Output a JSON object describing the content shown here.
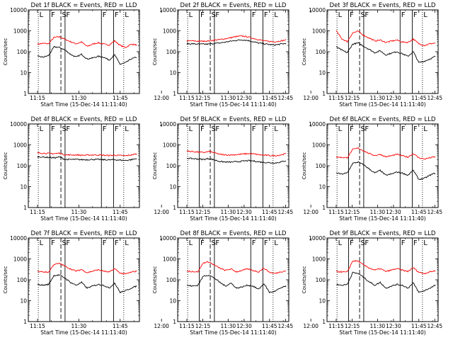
{
  "page": {
    "background": "#ffffff",
    "events_color": "#000000",
    "lld_color": "#ff0000"
  },
  "common": {
    "xlabel": "Start Time (15-Dec-14 11:11:40)",
    "ylabel": "Counts/sec",
    "x_ticks": [
      "11:15",
      "11:30",
      "11:45",
      "12:00",
      "12:15",
      "12:30",
      "12:45"
    ],
    "y_ticks": [
      "1",
      "10",
      "100",
      "1000",
      "10000"
    ],
    "xlim_minutes_from_1100": [
      11.67,
      52
    ],
    "ylim": [
      1,
      10000
    ],
    "y_scale": "log"
  },
  "chart_data": [
    {
      "type": "line",
      "title": "Det 1f BLACK = Events, RED = LLD",
      "panel_tag": "1f",
      "top_markers": [
        "L",
        "F",
        "S",
        "F",
        "F",
        "F",
        "L"
      ],
      "x_minutes_from_1100": [
        15,
        17,
        19,
        21,
        23,
        25,
        27,
        29,
        31,
        33,
        35,
        37,
        39,
        41,
        43,
        45,
        47,
        49,
        51
      ],
      "series": [
        {
          "name": "LLD",
          "values": [
            230,
            250,
            240,
            480,
            520,
            390,
            300,
            240,
            290,
            180,
            230,
            270,
            230,
            210,
            330,
            200,
            160,
            230,
            210
          ]
        },
        {
          "name": "Events",
          "values": [
            60,
            55,
            65,
            170,
            160,
            120,
            75,
            55,
            75,
            45,
            50,
            60,
            55,
            40,
            70,
            25,
            30,
            45,
            55
          ]
        }
      ],
      "markers": [
        {
          "label": "L",
          "x": 15.3,
          "line": "dotted"
        },
        {
          "label": "F",
          "x": 19.5,
          "line": "solid"
        },
        {
          "label": "S",
          "x": 23.5,
          "line": "dashed"
        },
        {
          "label": "F",
          "x": 25.0,
          "line": "solid"
        },
        {
          "label": "F",
          "x": 38.2,
          "line": "solid"
        },
        {
          "label": "F",
          "x": 42.6,
          "line": "solid"
        },
        {
          "label": "L",
          "x": 46.3,
          "line": "dotted"
        }
      ]
    },
    {
      "type": "line",
      "title": "Det 2f BLACK = Events, RED = LLD",
      "panel_tag": "2f",
      "top_markers": [
        "L",
        "F",
        "S",
        "F",
        "F",
        "F",
        "L"
      ],
      "x_minutes_from_1100": [
        15,
        17,
        19,
        21,
        23,
        25,
        27,
        29,
        31,
        33,
        35,
        37,
        39,
        41,
        43,
        45,
        47,
        49,
        51
      ],
      "series": [
        {
          "name": "LLD",
          "values": [
            330,
            330,
            320,
            320,
            330,
            360,
            380,
            420,
            470,
            530,
            560,
            520,
            440,
            380,
            330,
            310,
            300,
            330,
            360
          ]
        },
        {
          "name": "Events",
          "values": [
            240,
            240,
            230,
            230,
            230,
            250,
            260,
            290,
            320,
            350,
            370,
            350,
            300,
            260,
            240,
            220,
            210,
            230,
            250
          ]
        }
      ],
      "markers": [
        {
          "label": "L",
          "x": 15.3,
          "line": "dotted"
        },
        {
          "label": "F",
          "x": 19.5,
          "line": "solid"
        },
        {
          "label": "S",
          "x": 23.5,
          "line": "dashed"
        },
        {
          "label": "F",
          "x": 25.0,
          "line": "solid"
        },
        {
          "label": "F",
          "x": 38.2,
          "line": "solid"
        },
        {
          "label": "F",
          "x": 42.6,
          "line": "solid"
        },
        {
          "label": "L",
          "x": 46.3,
          "line": "dotted"
        }
      ]
    },
    {
      "type": "line",
      "title": "Det 3f BLACK = Events, RED = LLD",
      "panel_tag": "3f",
      "top_markers": [
        "L",
        "F",
        "S",
        "F",
        "F",
        "F",
        "L"
      ],
      "x_minutes_from_1100": [
        15,
        17,
        19,
        21,
        23,
        25,
        27,
        29,
        31,
        33,
        35,
        37,
        39,
        41,
        43,
        45,
        47,
        49,
        51
      ],
      "series": [
        {
          "name": "LLD",
          "values": [
            1000,
            420,
            300,
            800,
            950,
            600,
            450,
            330,
            360,
            280,
            320,
            360,
            290,
            280,
            400,
            240,
            200,
            240,
            260
          ]
        },
        {
          "name": "Events",
          "values": [
            170,
            120,
            90,
            230,
            260,
            180,
            130,
            90,
            110,
            70,
            85,
            100,
            80,
            60,
            100,
            30,
            35,
            45,
            60
          ]
        }
      ],
      "markers": [
        {
          "label": "L",
          "x": 15.3,
          "line": "dotted"
        },
        {
          "label": "F",
          "x": 19.5,
          "line": "solid"
        },
        {
          "label": "S",
          "x": 23.5,
          "line": "dashed"
        },
        {
          "label": "F",
          "x": 25.0,
          "line": "solid"
        },
        {
          "label": "F",
          "x": 38.2,
          "line": "solid"
        },
        {
          "label": "F",
          "x": 42.6,
          "line": "solid"
        },
        {
          "label": "L",
          "x": 46.3,
          "line": "dotted"
        }
      ]
    },
    {
      "type": "line",
      "title": "Det 4f BLACK = Events, RED = LLD",
      "panel_tag": "4f",
      "top_markers": [
        "L",
        "F",
        "S",
        "F",
        "F",
        "F",
        "L"
      ],
      "x_minutes_from_1100": [
        15,
        17,
        19,
        21,
        23,
        25,
        27,
        29,
        31,
        33,
        35,
        37,
        39,
        41,
        43,
        45,
        47,
        49,
        51
      ],
      "series": [
        {
          "name": "LLD",
          "values": [
            420,
            400,
            390,
            380,
            400,
            330,
            330,
            330,
            320,
            320,
            330,
            330,
            320,
            310,
            320,
            310,
            300,
            330,
            370
          ]
        },
        {
          "name": "Events",
          "values": [
            270,
            260,
            250,
            240,
            260,
            200,
            200,
            200,
            195,
            195,
            200,
            200,
            195,
            190,
            195,
            185,
            180,
            195,
            220
          ]
        }
      ],
      "markers": [
        {
          "label": "L",
          "x": 15.3,
          "line": "dotted"
        },
        {
          "label": "F",
          "x": 19.5,
          "line": "solid"
        },
        {
          "label": "S",
          "x": 23.5,
          "line": "dashed"
        },
        {
          "label": "F",
          "x": 25.0,
          "line": "solid"
        },
        {
          "label": "F",
          "x": 38.2,
          "line": "solid"
        },
        {
          "label": "F",
          "x": 42.6,
          "line": "solid"
        },
        {
          "label": "L",
          "x": 46.3,
          "line": "dotted"
        }
      ]
    },
    {
      "type": "line",
      "title": "Det 5f BLACK = Events, RED = LLD",
      "panel_tag": "5f",
      "top_markers": [
        "L",
        "F",
        "S",
        "F",
        "F",
        "F",
        "L"
      ],
      "x_minutes_from_1100": [
        15,
        17,
        19,
        21,
        23,
        25,
        27,
        29,
        31,
        33,
        35,
        37,
        39,
        41,
        43,
        45,
        47,
        49,
        51
      ],
      "series": [
        {
          "name": "LLD",
          "values": [
            500,
            480,
            450,
            430,
            480,
            420,
            350,
            330,
            330,
            340,
            360,
            380,
            370,
            340,
            320,
            310,
            300,
            330,
            380
          ]
        },
        {
          "name": "Events",
          "values": [
            230,
            220,
            210,
            200,
            220,
            190,
            160,
            150,
            150,
            155,
            165,
            175,
            170,
            155,
            145,
            140,
            135,
            150,
            175
          ]
        }
      ],
      "markers": [
        {
          "label": "L",
          "x": 15.3,
          "line": "dotted"
        },
        {
          "label": "F",
          "x": 19.5,
          "line": "solid"
        },
        {
          "label": "S",
          "x": 23.5,
          "line": "dashed"
        },
        {
          "label": "F",
          "x": 25.0,
          "line": "solid"
        },
        {
          "label": "F",
          "x": 38.2,
          "line": "solid"
        },
        {
          "label": "F",
          "x": 42.6,
          "line": "solid"
        },
        {
          "label": "L",
          "x": 46.3,
          "line": "dotted"
        }
      ]
    },
    {
      "type": "line",
      "title": "Det 6f BLACK = Events, RED = LLD",
      "panel_tag": "6f",
      "top_markers": [
        "L",
        "F",
        "S",
        "F",
        "F",
        "F",
        "L"
      ],
      "x_minutes_from_1100": [
        15,
        17,
        19,
        21,
        23,
        25,
        27,
        29,
        31,
        33,
        35,
        37,
        39,
        41,
        43,
        45,
        47,
        49,
        51
      ],
      "series": [
        {
          "name": "LLD",
          "values": [
            260,
            250,
            240,
            600,
            700,
            520,
            380,
            310,
            350,
            270,
            300,
            350,
            300,
            260,
            380,
            240,
            210,
            240,
            270
          ]
        },
        {
          "name": "Events",
          "values": [
            45,
            40,
            45,
            130,
            150,
            110,
            70,
            45,
            60,
            35,
            40,
            50,
            45,
            35,
            60,
            22,
            25,
            35,
            45
          ]
        }
      ],
      "markers": [
        {
          "label": "L",
          "x": 15.3,
          "line": "dotted"
        },
        {
          "label": "F",
          "x": 19.5,
          "line": "solid"
        },
        {
          "label": "S",
          "x": 23.5,
          "line": "dashed"
        },
        {
          "label": "F",
          "x": 25.0,
          "line": "solid"
        },
        {
          "label": "F",
          "x": 38.2,
          "line": "solid"
        },
        {
          "label": "F",
          "x": 42.6,
          "line": "solid"
        },
        {
          "label": "L",
          "x": 46.3,
          "line": "dotted"
        }
      ]
    },
    {
      "type": "line",
      "title": "Det 7f BLACK = Events, RED = LLD",
      "panel_tag": "7f",
      "top_markers": [
        "L",
        "F",
        "S",
        "F",
        "F",
        "F",
        "L"
      ],
      "x_minutes_from_1100": [
        15,
        17,
        19,
        21,
        23,
        25,
        27,
        29,
        31,
        33,
        35,
        37,
        39,
        41,
        43,
        45,
        47,
        49,
        51
      ],
      "series": [
        {
          "name": "LLD",
          "values": [
            250,
            240,
            230,
            550,
            600,
            450,
            330,
            260,
            310,
            220,
            260,
            300,
            260,
            230,
            340,
            210,
            190,
            230,
            260
          ]
        },
        {
          "name": "Events",
          "values": [
            60,
            55,
            60,
            160,
            170,
            120,
            75,
            55,
            75,
            40,
            50,
            60,
            55,
            40,
            70,
            25,
            30,
            40,
            50
          ]
        }
      ],
      "markers": [
        {
          "label": "L",
          "x": 15.3,
          "line": "dotted"
        },
        {
          "label": "F",
          "x": 19.5,
          "line": "solid"
        },
        {
          "label": "S",
          "x": 23.5,
          "line": "dashed"
        },
        {
          "label": "F",
          "x": 25.0,
          "line": "solid"
        },
        {
          "label": "F",
          "x": 38.2,
          "line": "solid"
        },
        {
          "label": "F",
          "x": 42.6,
          "line": "solid"
        },
        {
          "label": "L",
          "x": 46.3,
          "line": "dotted"
        }
      ]
    },
    {
      "type": "line",
      "title": "Det 8f BLACK = Events, RED = LLD",
      "panel_tag": "8f",
      "top_markers": [
        "L",
        "F",
        "S",
        "F",
        "F",
        "F",
        "L"
      ],
      "x_minutes_from_1100": [
        15,
        17,
        19,
        21,
        23,
        25,
        27,
        29,
        31,
        33,
        35,
        37,
        39,
        41,
        43,
        45,
        47,
        49,
        51
      ],
      "series": [
        {
          "name": "LLD",
          "values": [
            260,
            250,
            240,
            650,
            720,
            500,
            360,
            280,
            330,
            240,
            280,
            330,
            280,
            240,
            360,
            230,
            200,
            240,
            270
          ]
        },
        {
          "name": "Events",
          "values": [
            55,
            50,
            55,
            150,
            170,
            120,
            75,
            50,
            70,
            40,
            45,
            55,
            50,
            35,
            65,
            25,
            28,
            40,
            50
          ]
        }
      ],
      "markers": [
        {
          "label": "L",
          "x": 15.3,
          "line": "dotted"
        },
        {
          "label": "F",
          "x": 19.5,
          "line": "solid"
        },
        {
          "label": "S",
          "x": 23.5,
          "line": "dashed"
        },
        {
          "label": "F",
          "x": 25.0,
          "line": "solid"
        },
        {
          "label": "F",
          "x": 38.2,
          "line": "solid"
        },
        {
          "label": "F",
          "x": 42.6,
          "line": "solid"
        },
        {
          "label": "L",
          "x": 46.3,
          "line": "dotted"
        }
      ]
    },
    {
      "type": "line",
      "title": "Det 9f BLACK = Events, RED = LLD",
      "panel_tag": "9f",
      "top_markers": [
        "L",
        "F",
        "S",
        "F",
        "F",
        "F",
        "L"
      ],
      "x_minutes_from_1100": [
        15,
        17,
        19,
        21,
        23,
        25,
        27,
        29,
        31,
        33,
        35,
        37,
        39,
        41,
        43,
        45,
        47,
        49,
        51
      ],
      "series": [
        {
          "name": "LLD",
          "values": [
            250,
            240,
            230,
            800,
            780,
            500,
            370,
            290,
            340,
            250,
            290,
            340,
            290,
            250,
            380,
            230,
            200,
            240,
            270
          ]
        },
        {
          "name": "Events",
          "values": [
            60,
            55,
            60,
            220,
            200,
            130,
            80,
            55,
            75,
            40,
            50,
            60,
            55,
            40,
            70,
            25,
            30,
            40,
            55
          ]
        }
      ],
      "markers": [
        {
          "label": "L",
          "x": 15.3,
          "line": "dotted"
        },
        {
          "label": "F",
          "x": 19.5,
          "line": "solid"
        },
        {
          "label": "S",
          "x": 23.5,
          "line": "dashed"
        },
        {
          "label": "F",
          "x": 25.0,
          "line": "solid"
        },
        {
          "label": "F",
          "x": 38.2,
          "line": "solid"
        },
        {
          "label": "F",
          "x": 42.6,
          "line": "solid"
        },
        {
          "label": "L",
          "x": 46.3,
          "line": "dotted"
        }
      ]
    }
  ]
}
